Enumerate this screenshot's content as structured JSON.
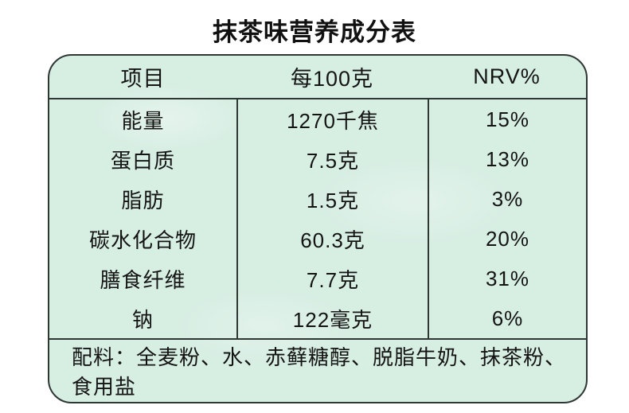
{
  "page": {
    "title": "抹茶味营养成分表"
  },
  "colors": {
    "page_background": "#ffffff",
    "card_background": "#d7eee3",
    "border": "#2f3734",
    "text": "#141414"
  },
  "nutrition_table": {
    "headers": {
      "item": "项目",
      "per_100g": "每100克",
      "nrv": "NRV%"
    },
    "rows": [
      {
        "item": "能量",
        "per_100g": "1270千焦",
        "nrv": "15%"
      },
      {
        "item": "蛋白质",
        "per_100g": "7.5克",
        "nrv": "13%"
      },
      {
        "item": "脂肪",
        "per_100g": "1.5克",
        "nrv": "3%"
      },
      {
        "item": "碳水化合物",
        "per_100g": "60.3克",
        "nrv": "20%"
      },
      {
        "item": "膳食纤维",
        "per_100g": "7.7克",
        "nrv": "31%"
      },
      {
        "item": "钠",
        "per_100g": "122毫克",
        "nrv": "6%"
      }
    ],
    "ingredients": "配料：全麦粉、水、赤藓糖醇、脱脂牛奶、抹茶粉、食用盐"
  }
}
